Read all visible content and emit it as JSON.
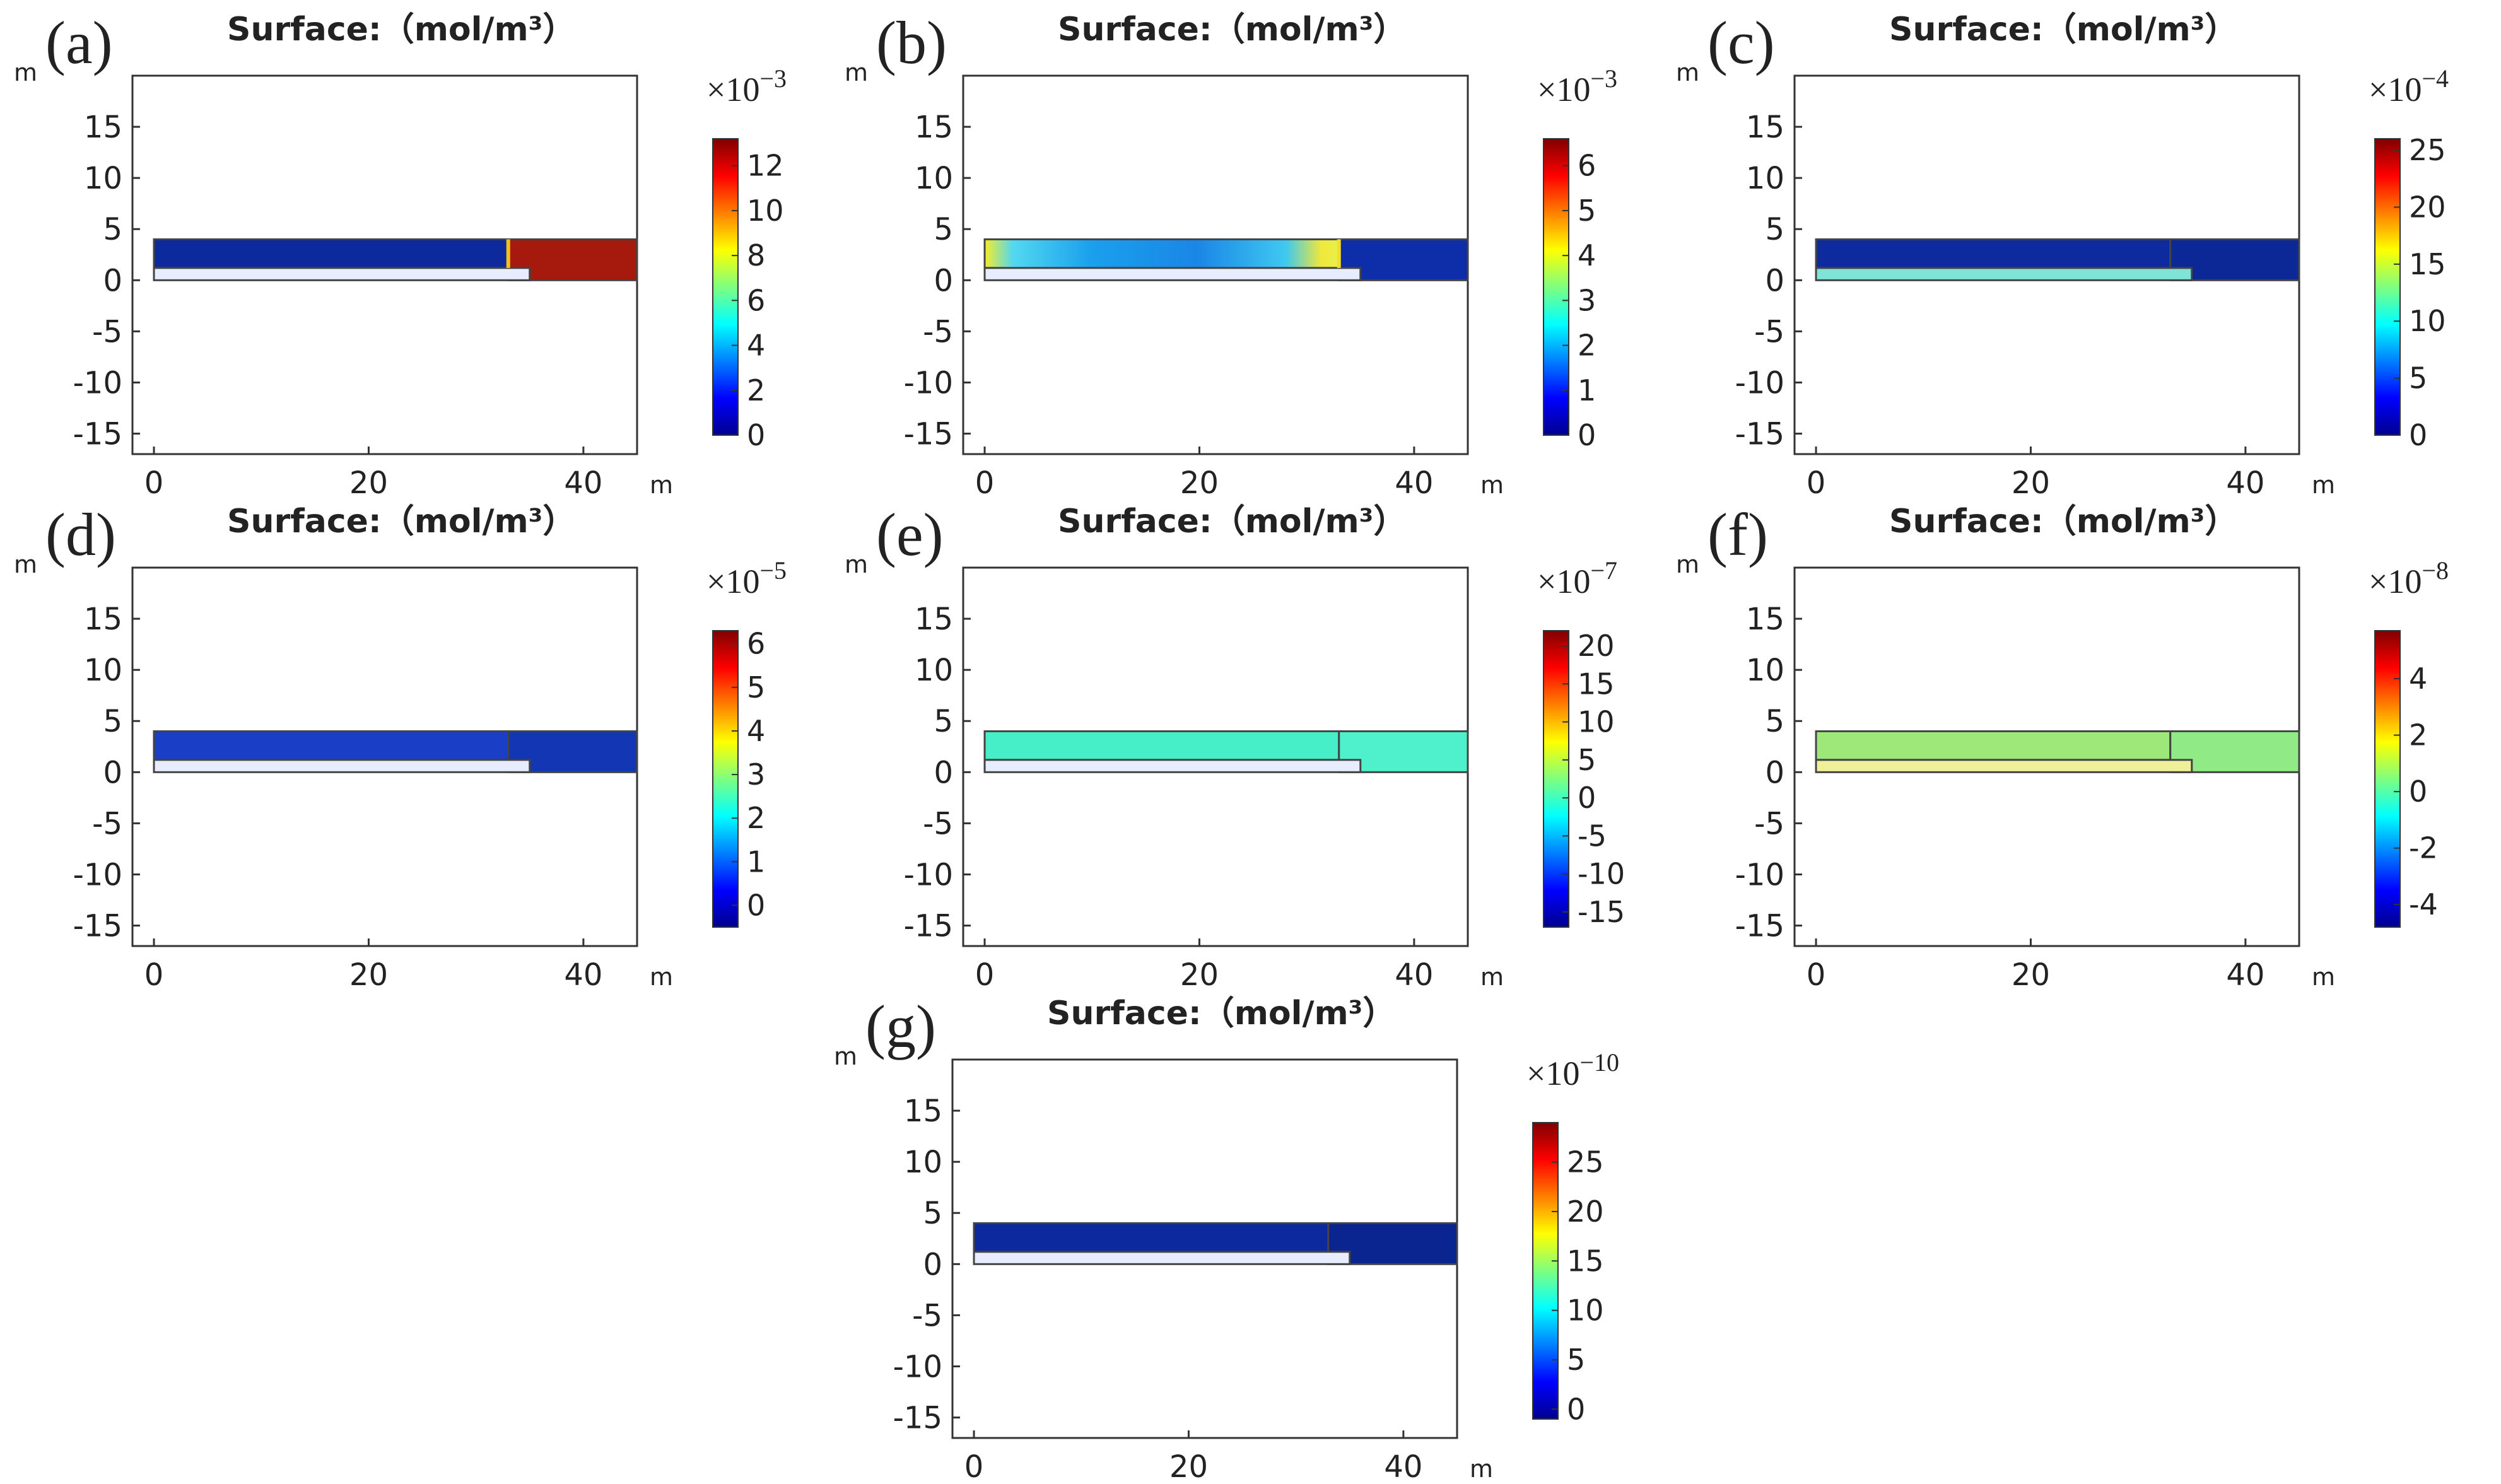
{
  "figure": {
    "panels": [
      {
        "label": "(a)",
        "title": "Surface:（mol/m³）",
        "scale": "×10",
        "scale_exp": "−3",
        "x_unit": "m",
        "y_unit": "m",
        "x_ticks": [
          "0",
          "20",
          "40"
        ],
        "y_ticks": [
          "15",
          "10",
          "5",
          "0",
          "-5",
          "-10",
          "-15"
        ],
        "colorbar": {
          "ticks": [
            "0",
            "2",
            "4",
            "6",
            "8",
            "10",
            "12"
          ],
          "min": 0,
          "max": 13.2
        },
        "colors": {
          "left": "#0c2a9c",
          "right": "#a51a0c",
          "bottom_strip": "#e8ecff",
          "accent": "#f2c21b"
        }
      },
      {
        "label": "(b)",
        "title": "Surface:（mol/m³）",
        "scale": "×10",
        "scale_exp": "−3",
        "x_unit": "m",
        "y_unit": "m",
        "x_ticks": [
          "0",
          "20",
          "40"
        ],
        "y_ticks": [
          "15",
          "10",
          "5",
          "0",
          "-5",
          "-10",
          "-15"
        ],
        "colorbar": {
          "ticks": [
            "0",
            "1",
            "2",
            "3",
            "4",
            "5",
            "6"
          ],
          "min": 0,
          "max": 6.6
        },
        "colors": {
          "left": "gradient",
          "right": "#0d2ea8",
          "bottom_strip": "#e8ecff",
          "accent": "#f0e02a"
        }
      },
      {
        "label": "(c)",
        "title": "Surface:（mol/m³）",
        "scale": "×10",
        "scale_exp": "−4",
        "x_unit": "m",
        "y_unit": "m",
        "x_ticks": [
          "0",
          "20",
          "40"
        ],
        "y_ticks": [
          "15",
          "10",
          "5",
          "0",
          "-5",
          "-10",
          "-15"
        ],
        "colorbar": {
          "ticks": [
            "0",
            "5",
            "10",
            "15",
            "20",
            "25"
          ],
          "min": 0,
          "max": 26
        },
        "colors": {
          "left": "#0d2a9e",
          "right": "#0c2796",
          "bottom_strip": "#7fe3d8",
          "accent": ""
        }
      },
      {
        "label": "(d)",
        "title": "Surface:（mol/m³）",
        "scale": "×10",
        "scale_exp": "−5",
        "x_unit": "m",
        "y_unit": "m",
        "x_ticks": [
          "0",
          "20",
          "40"
        ],
        "y_ticks": [
          "15",
          "10",
          "5",
          "0",
          "-5",
          "-10",
          "-15"
        ],
        "colorbar": {
          "ticks": [
            "0",
            "1",
            "2",
            "3",
            "4",
            "5",
            "6"
          ],
          "min": -0.5,
          "max": 6.3
        },
        "colors": {
          "left": "#1a3fc6",
          "right": "#1336b5",
          "bottom_strip": "#e8ecff",
          "accent": ""
        }
      },
      {
        "label": "(e)",
        "title": "Surface:（mol/m³）",
        "scale": "×10",
        "scale_exp": "−7",
        "x_unit": "m",
        "y_unit": "m",
        "x_ticks": [
          "0",
          "20",
          "40"
        ],
        "y_ticks": [
          "15",
          "10",
          "5",
          "0",
          "-5",
          "-10",
          "-15"
        ],
        "colorbar": {
          "ticks": [
            "-15",
            "-10",
            "-5",
            "0",
            "5",
            "10",
            "15",
            "20"
          ],
          "min": -17,
          "max": 22
        },
        "colors": {
          "left": "#47efc8",
          "right": "#4ff0cc",
          "bottom_strip": "#e8ecff",
          "accent": ""
        }
      },
      {
        "label": "(f)",
        "title": "Surface:（mol/m³）",
        "scale": "×10",
        "scale_exp": "−8",
        "x_unit": "m",
        "y_unit": "m",
        "x_ticks": [
          "0",
          "20",
          "40"
        ],
        "y_ticks": [
          "15",
          "10",
          "5",
          "0",
          "-5",
          "-10",
          "-15"
        ],
        "colorbar": {
          "ticks": [
            "-4",
            "-2",
            "0",
            "2",
            "4"
          ],
          "min": -4.8,
          "max": 5.7
        },
        "colors": {
          "left": "#9ee87a",
          "right": "#90ea86",
          "bottom_strip": "#f0f09a",
          "accent": ""
        }
      },
      {
        "label": "(g)",
        "title": "Surface:（mol/m³）",
        "scale": "×10",
        "scale_exp": "−10",
        "x_unit": "m",
        "y_unit": "m",
        "x_ticks": [
          "0",
          "20",
          "40"
        ],
        "y_ticks": [
          "15",
          "10",
          "5",
          "0",
          "-5",
          "-10",
          "-15"
        ],
        "colorbar": {
          "ticks": [
            "0",
            "5",
            "10",
            "15",
            "20",
            "25"
          ],
          "min": -1,
          "max": 29
        },
        "colors": {
          "left": "#0c2a9e",
          "right": "#0a2590",
          "bottom_strip": "#e8ecff",
          "accent": ""
        }
      }
    ]
  },
  "chart_data": {
    "type": "heatmap",
    "colormap": "jet",
    "panels": [
      {
        "label": "(a)",
        "xlim": [
          -2,
          45
        ],
        "ylim": [
          -17,
          20
        ],
        "value_range": [
          0,
          13.2
        ],
        "exponent": -3,
        "regions": [
          {
            "name": "upper-left-channel",
            "x": [
              0,
              33
            ],
            "y": [
              1.2,
              4
            ],
            "value": 0.3
          },
          {
            "name": "upper-right-chamber",
            "x": [
              33,
              45
            ],
            "y": [
              0,
              4
            ],
            "value": 13.2
          },
          {
            "name": "lower-strip",
            "x": [
              0,
              35
            ],
            "y": [
              0,
              1.2
            ],
            "value": 0.0
          }
        ]
      },
      {
        "label": "(b)",
        "xlim": [
          -2,
          45
        ],
        "ylim": [
          -17,
          20
        ],
        "value_range": [
          0,
          6.6
        ],
        "exponent": -3,
        "regions": [
          {
            "name": "upper-left-channel",
            "x": [
              0,
              33
            ],
            "y": [
              1.2,
              4
            ],
            "value": 2.5
          },
          {
            "name": "upper-right-chamber",
            "x": [
              33,
              45
            ],
            "y": [
              0,
              4
            ],
            "value": 0.3
          },
          {
            "name": "lower-strip",
            "x": [
              0,
              35
            ],
            "y": [
              0,
              1.2
            ],
            "value": 0.0
          }
        ]
      },
      {
        "label": "(c)",
        "xlim": [
          -2,
          45
        ],
        "ylim": [
          -17,
          20
        ],
        "value_range": [
          0,
          26
        ],
        "exponent": -4,
        "regions": [
          {
            "name": "upper-left-channel",
            "x": [
              0,
              33
            ],
            "y": [
              1.2,
              4
            ],
            "value": 1
          },
          {
            "name": "upper-right-chamber",
            "x": [
              33,
              45
            ],
            "y": [
              0,
              4
            ],
            "value": 0.5
          },
          {
            "name": "lower-strip",
            "x": [
              0,
              35
            ],
            "y": [
              0,
              1.2
            ],
            "value": 10
          }
        ]
      },
      {
        "label": "(d)",
        "xlim": [
          -2,
          45
        ],
        "ylim": [
          -17,
          20
        ],
        "value_range": [
          -0.5,
          6.3
        ],
        "exponent": -5,
        "regions": [
          {
            "name": "upper-left-channel",
            "x": [
              0,
              33
            ],
            "y": [
              1.2,
              4
            ],
            "value": 0.8
          },
          {
            "name": "upper-right-chamber",
            "x": [
              33,
              45
            ],
            "y": [
              0,
              4
            ],
            "value": 0.6
          },
          {
            "name": "lower-strip",
            "x": [
              0,
              35
            ],
            "y": [
              0,
              1.2
            ],
            "value": 0.0
          }
        ]
      },
      {
        "label": "(e)",
        "xlim": [
          -2,
          45
        ],
        "ylim": [
          -17,
          20
        ],
        "value_range": [
          -17,
          22
        ],
        "exponent": -7,
        "regions": [
          {
            "name": "upper-left-channel",
            "x": [
              0,
              33
            ],
            "y": [
              1.2,
              4
            ],
            "value": 0.5
          },
          {
            "name": "upper-right-chamber",
            "x": [
              33,
              45
            ],
            "y": [
              0,
              4
            ],
            "value": 0.8
          },
          {
            "name": "lower-strip",
            "x": [
              0,
              35
            ],
            "y": [
              0,
              1.2
            ],
            "value": 0.0
          }
        ]
      },
      {
        "label": "(f)",
        "xlim": [
          -2,
          45
        ],
        "ylim": [
          -17,
          20
        ],
        "value_range": [
          -4.8,
          5.7
        ],
        "exponent": -8,
        "regions": [
          {
            "name": "upper-left-channel",
            "x": [
              0,
              33
            ],
            "y": [
              1.2,
              4
            ],
            "value": 1.2
          },
          {
            "name": "upper-right-chamber",
            "x": [
              33,
              45
            ],
            "y": [
              0,
              4
            ],
            "value": 1.0
          },
          {
            "name": "lower-strip",
            "x": [
              0,
              35
            ],
            "y": [
              0,
              1.2
            ],
            "value": 2.0
          }
        ]
      },
      {
        "label": "(g)",
        "xlim": [
          -2,
          45
        ],
        "ylim": [
          -17,
          20
        ],
        "value_range": [
          -1,
          29
        ],
        "exponent": -10,
        "regions": [
          {
            "name": "upper-left-channel",
            "x": [
              0,
              33
            ],
            "y": [
              1.2,
              4
            ],
            "value": 1
          },
          {
            "name": "upper-right-chamber",
            "x": [
              33,
              45
            ],
            "y": [
              0,
              4
            ],
            "value": 0.5
          },
          {
            "name": "lower-strip",
            "x": [
              0,
              35
            ],
            "y": [
              0,
              1.2
            ],
            "value": 0.0
          }
        ]
      }
    ]
  }
}
